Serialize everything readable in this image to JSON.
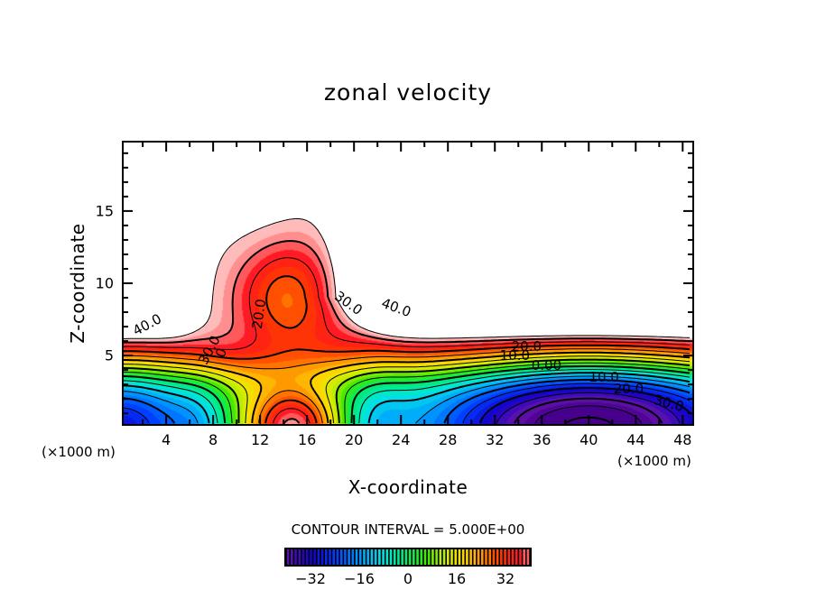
{
  "title": "zonal velocity",
  "chart_data": {
    "type": "heatmap",
    "subtype": "filled-contour",
    "title": "zonal velocity",
    "xlabel": "X-coordinate",
    "ylabel": "Z-coordinate",
    "x_unit": "(×1000 m)",
    "x_unit_right": "(×1000 m)",
    "xlim": [
      0.3,
      48.9
    ],
    "ylim": [
      0.2,
      19.8
    ],
    "x_ticks": [
      4,
      8,
      12,
      16,
      20,
      24,
      28,
      32,
      36,
      40,
      44,
      48
    ],
    "x_tick_labels": [
      "4",
      "8",
      "12",
      "16",
      "20",
      "24",
      "28",
      "32",
      "36",
      "40",
      "44",
      "48"
    ],
    "x_minor_step": 2,
    "y_ticks": [
      5,
      10,
      15
    ],
    "y_tick_labels": [
      "5",
      "10",
      "15"
    ],
    "y_minor_step": 1,
    "contour_interval": 5.0,
    "contour_interval_text": "CONTOUR INTERVAL = 5.000E+00",
    "negative_contours": "dashed",
    "color_range": [
      -40,
      40
    ],
    "colorbar": {
      "ticks": [
        -32,
        -16,
        0,
        16,
        32
      ],
      "tick_labels": [
        "−32",
        "−16",
        "0",
        "16",
        "32"
      ],
      "min": -40,
      "max": 40,
      "colors": [
        "#6a0fa8",
        "#3c00b4",
        "#1400d2",
        "#0a1ef0",
        "#0050ff",
        "#0082ff",
        "#00aaff",
        "#00d2ff",
        "#00f0c8",
        "#00f08c",
        "#00f050",
        "#28f000",
        "#78f000",
        "#b4f000",
        "#e6f000",
        "#ffdc00",
        "#ffaa00",
        "#ff7800",
        "#ff4600",
        "#ff1e1e",
        "#ff5050",
        "#ff8c8c"
      ]
    },
    "contour_labels": [
      {
        "text": "40.0",
        "x": 2.4,
        "z": 7.1,
        "angle": -28
      },
      {
        "text": "30.0",
        "x": 7.7,
        "z": 5.4,
        "angle": -62
      },
      {
        "text": "0",
        "x": 8.7,
        "z": 5.2,
        "angle": -70
      },
      {
        "text": "20.0",
        "x": 11.9,
        "z": 7.9,
        "angle": -82
      },
      {
        "text": "30.0",
        "x": 19.5,
        "z": 8.6,
        "angle": 35
      },
      {
        "text": "40.0",
        "x": 23.6,
        "z": 8.3,
        "angle": 20
      },
      {
        "text": "20.0",
        "x": 34.7,
        "z": 5.6,
        "angle": 0
      },
      {
        "text": "10.0",
        "x": 33.7,
        "z": 5.0,
        "angle": 0
      },
      {
        "text": "0.00",
        "x": 36.4,
        "z": 4.3,
        "angle": 0
      },
      {
        "text": "10.0",
        "x": 41.3,
        "z": 3.5,
        "angle": 0
      },
      {
        "text": "20.0",
        "x": 43.4,
        "z": 2.7,
        "angle": 0
      },
      {
        "text": "30.0",
        "x": 46.8,
        "z": 1.7,
        "angle": 15
      }
    ]
  }
}
